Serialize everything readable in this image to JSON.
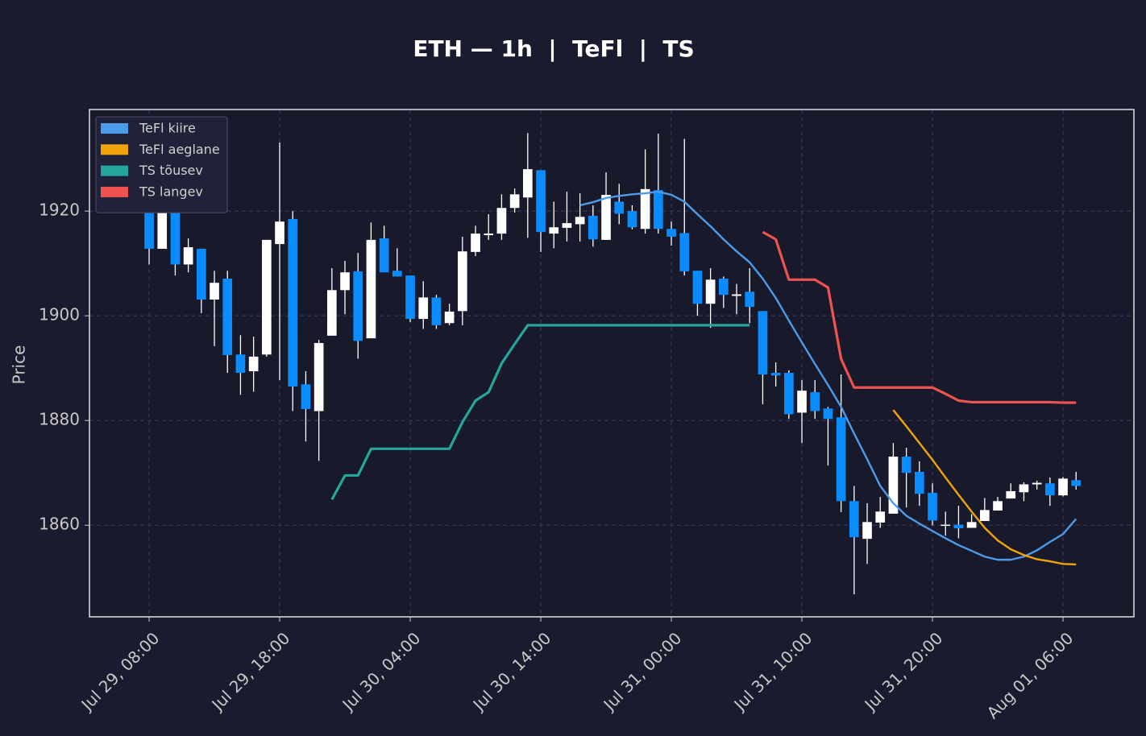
{
  "chart_data": {
    "type": "candlestick",
    "title": "ETH — 1h  |  TeFl  |  TS",
    "ylabel": "Price",
    "x": [
      0,
      1,
      2,
      3,
      4,
      5,
      6,
      7,
      8,
      9,
      10,
      11,
      12,
      13,
      14,
      15,
      16,
      17,
      18,
      19,
      20,
      21,
      22,
      23,
      24,
      25,
      26,
      27,
      28,
      29,
      30,
      31,
      32,
      33,
      34,
      35,
      36,
      37,
      38,
      39,
      40,
      41,
      42,
      43,
      44,
      45,
      46,
      47,
      48,
      49,
      50,
      51,
      52,
      53,
      54,
      55,
      56,
      57,
      58,
      59,
      60,
      61,
      62,
      63,
      64,
      65,
      66,
      67,
      68,
      69,
      70,
      71
    ],
    "open": [
      1922.6,
      1912.8,
      1920,
      1909.8,
      1912.8,
      1903.1,
      1907.1,
      1892.6,
      1889.4,
      1892.6,
      1913.7,
      1918.5,
      1886.9,
      1881.8,
      1896.2,
      1904.9,
      1908.5,
      1895.7,
      1914.8,
      1908.6,
      1907.7,
      1899.4,
      1903.5,
      1898.6,
      1900.9,
      1912.2,
      1915.4,
      1915.7,
      1920.6,
      1922.6,
      1927.8,
      1915.7,
      1916.8,
      1917.5,
      1919.1,
      1914.5,
      1921.8,
      1920,
      1916.6,
      1924,
      1916.6,
      1915.8,
      1908.6,
      1902.3,
      1907.1,
      1903.8,
      1904.6,
      1900.9,
      1889.1,
      1889.1,
      1881.5,
      1885.4,
      1882.3,
      1880.6,
      1864.6,
      1857.4,
      1860.5,
      1862.2,
      1873.1,
      1870.2,
      1866.2,
      1859.9,
      1860.1,
      1859.5,
      1860.8,
      1862.8,
      1865.1,
      1866.3,
      1867.8,
      1868,
      1865.7,
      1868.6
    ],
    "high": [
      1923.4,
      1920.6,
      1920,
      1914.8,
      1912.8,
      1908.6,
      1908.6,
      1896.3,
      1896,
      1914.5,
      1933.1,
      1920,
      1889.4,
      1895.4,
      1909.1,
      1910.5,
      1912,
      1917.8,
      1917.2,
      1912.9,
      1907.7,
      1906.6,
      1904,
      1902.3,
      1915.1,
      1917.2,
      1919.4,
      1923.2,
      1924.3,
      1934.9,
      1927.8,
      1921.8,
      1923.7,
      1923.4,
      1921.1,
      1927.4,
      1925.2,
      1921.1,
      1931.8,
      1934.8,
      1918,
      1933.8,
      1908.6,
      1909.1,
      1907.5,
      1906.1,
      1909.1,
      1900.9,
      1891.1,
      1889.6,
      1887.7,
      1887.7,
      1882.6,
      1888.8,
      1867.5,
      1864.2,
      1865.4,
      1875.7,
      1874.8,
      1872.2,
      1868,
      1862.6,
      1863.7,
      1862.1,
      1865.2,
      1865.4,
      1868,
      1868.2,
      1868.5,
      1869.1,
      1869.2,
      1870.2
    ],
    "low": [
      1909.8,
      1912.8,
      1907.7,
      1908.3,
      1900.5,
      1894.2,
      1889.1,
      1884.9,
      1885.5,
      1892.2,
      1887.7,
      1881.8,
      1876,
      1872.3,
      1896.2,
      1900.3,
      1891.8,
      1895.7,
      1908.3,
      1907.5,
      1898.8,
      1897.5,
      1897.5,
      1898.2,
      1898.2,
      1911.4,
      1914.5,
      1914.5,
      1919.7,
      1914.9,
      1912.2,
      1912.9,
      1914.2,
      1914.2,
      1913.2,
      1914.5,
      1917.5,
      1916.5,
      1915.7,
      1915.7,
      1913.4,
      1907.7,
      1900,
      1897.7,
      1901.5,
      1900.3,
      1898.6,
      1883.1,
      1886.5,
      1880.3,
      1875.7,
      1880.3,
      1871.4,
      1862.5,
      1846.8,
      1852.6,
      1859.5,
      1862.2,
      1863.4,
      1863.7,
      1860,
      1858,
      1857.5,
      1859.5,
      1860.8,
      1862.8,
      1865.1,
      1864.6,
      1866.8,
      1863.7,
      1865.5,
      1866.8
    ],
    "close": [
      1912.8,
      1920,
      1909.8,
      1913.1,
      1903.1,
      1906.3,
      1892.5,
      1889.1,
      1892.2,
      1914.5,
      1918,
      1886.5,
      1882.2,
      1894.8,
      1904.9,
      1908.3,
      1895.2,
      1914.5,
      1908.3,
      1907.5,
      1899.4,
      1903.5,
      1898.2,
      1900.8,
      1912.3,
      1915.7,
      1915.7,
      1920.6,
      1923.2,
      1928,
      1916,
      1916.9,
      1917.7,
      1918.9,
      1914.6,
      1923.1,
      1919.5,
      1916.9,
      1924.2,
      1916.6,
      1915.1,
      1908.5,
      1902.3,
      1906.9,
      1904,
      1904.1,
      1901.7,
      1888.8,
      1888.6,
      1881.2,
      1885.7,
      1881.8,
      1880.3,
      1864.6,
      1857.7,
      1860.6,
      1862.6,
      1873.1,
      1870,
      1866,
      1860.9,
      1860.1,
      1859.4,
      1860.6,
      1862.9,
      1864.6,
      1866.5,
      1867.8,
      1868.1,
      1865.7,
      1868.9,
      1867.5
    ],
    "up_color": "#ffffff",
    "down_color": "#0a8cff",
    "wick_color": "#ffffff",
    "series": [
      {
        "name": "TeFl kiire",
        "color": "#4c9be8",
        "values": [
          null,
          null,
          null,
          null,
          null,
          null,
          null,
          null,
          null,
          null,
          null,
          null,
          null,
          null,
          null,
          null,
          null,
          null,
          null,
          null,
          null,
          null,
          null,
          null,
          null,
          null,
          null,
          null,
          null,
          null,
          null,
          null,
          null,
          1921.1,
          1921.7,
          1922.5,
          1922.9,
          1923.2,
          1923.4,
          1923.7,
          1923.1,
          1921.8,
          1919.4,
          1917.1,
          1914.6,
          1912.3,
          1910.2,
          1907.1,
          1903.4,
          1899.1,
          1894.9,
          1890.8,
          1886.8,
          1882.6,
          1877.5,
          1872.6,
          1867.5,
          1864.2,
          1861.8,
          1860.3,
          1858.9,
          1857.5,
          1856.2,
          1855.1,
          1854,
          1853.4,
          1853.4,
          1854,
          1855.2,
          1856.8,
          1858.3,
          1861.2
        ]
      },
      {
        "name": "TeFl aeglane",
        "color": "#f0a30a",
        "values": [
          null,
          null,
          null,
          null,
          null,
          null,
          null,
          null,
          null,
          null,
          null,
          null,
          null,
          null,
          null,
          null,
          null,
          null,
          null,
          null,
          null,
          null,
          null,
          null,
          null,
          null,
          null,
          null,
          null,
          null,
          null,
          null,
          null,
          null,
          null,
          null,
          null,
          null,
          null,
          null,
          null,
          null,
          null,
          null,
          null,
          null,
          null,
          null,
          null,
          null,
          null,
          null,
          null,
          null,
          null,
          null,
          null,
          1882,
          1878.9,
          1875.7,
          1872.5,
          1869.1,
          1865.8,
          1862.6,
          1859.5,
          1857.1,
          1855.4,
          1854.3,
          1853.5,
          1853.1,
          1852.6,
          1852.5
        ]
      },
      {
        "name": "TS tõusev",
        "color": "#26a69a",
        "values": [
          null,
          null,
          null,
          null,
          null,
          null,
          null,
          null,
          null,
          null,
          null,
          null,
          null,
          null,
          1864.9,
          1869.5,
          1869.5,
          1874.6,
          1874.6,
          1874.6,
          1874.6,
          1874.6,
          1874.6,
          1874.6,
          1879.7,
          1883.8,
          1885.4,
          1890.9,
          1894.6,
          1898.2,
          1898.2,
          1898.2,
          1898.2,
          1898.2,
          1898.2,
          1898.2,
          1898.2,
          1898.2,
          1898.2,
          1898.2,
          1898.2,
          1898.2,
          1898.2,
          1898.2,
          1898.2,
          1898.2,
          1898.2,
          null,
          null,
          null,
          null,
          null,
          null,
          null,
          null,
          null,
          null,
          null,
          null,
          null,
          null,
          null,
          null,
          null,
          null,
          null,
          null,
          null,
          null,
          null,
          null,
          null
        ]
      },
      {
        "name": "TS langev",
        "color": "#ef5350",
        "values": [
          null,
          null,
          null,
          null,
          null,
          null,
          null,
          null,
          null,
          null,
          null,
          null,
          null,
          null,
          null,
          null,
          null,
          null,
          null,
          null,
          null,
          null,
          null,
          null,
          null,
          null,
          null,
          null,
          null,
          null,
          null,
          null,
          null,
          null,
          null,
          null,
          null,
          null,
          null,
          null,
          null,
          null,
          null,
          null,
          null,
          null,
          null,
          1916,
          1914.6,
          1906.9,
          1906.9,
          1906.9,
          1905.4,
          1891.8,
          1886.3,
          1886.3,
          1886.3,
          1886.3,
          1886.3,
          1886.3,
          1886.3,
          1885.1,
          1883.8,
          1883.5,
          1883.5,
          1883.5,
          1883.5,
          1883.5,
          1883.5,
          1883.5,
          1883.4,
          1883.4
        ]
      }
    ],
    "xlim": [
      -4.57,
      75.43
    ],
    "ylim": [
      1842.5,
      1939.4
    ],
    "xticks": [
      {
        "value": 0,
        "label": "Jul 29, 08:00"
      },
      {
        "value": 10,
        "label": "Jul 29, 18:00"
      },
      {
        "value": 20,
        "label": "Jul 30, 04:00"
      },
      {
        "value": 30,
        "label": "Jul 30, 14:00"
      },
      {
        "value": 40,
        "label": "Jul 31, 00:00"
      },
      {
        "value": 50,
        "label": "Jul 31, 10:00"
      },
      {
        "value": 60,
        "label": "Jul 31, 20:00"
      },
      {
        "value": 70,
        "label": "Aug 01, 06:00"
      }
    ],
    "yticks": [
      1860,
      1880,
      1900,
      1920
    ],
    "grid": true,
    "legend": "upper left"
  }
}
